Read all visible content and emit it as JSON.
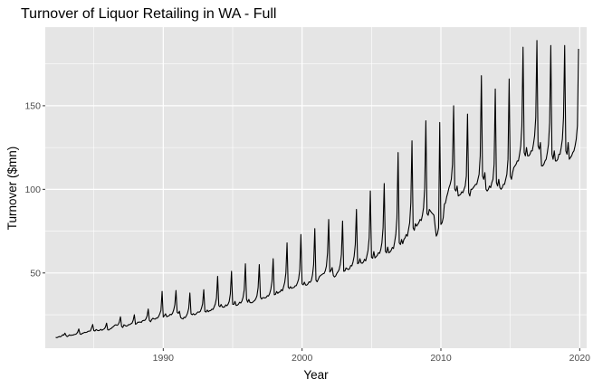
{
  "chart_data": {
    "type": "line",
    "title": "Turnover of Liquor Retailing in WA - Full",
    "xlabel": "Year",
    "ylabel": "Turnover ($mn)",
    "xlim": [
      1981.5,
      2020.5
    ],
    "ylim": [
      5,
      197
    ],
    "x_ticks": [
      1990,
      2000,
      2010,
      2020
    ],
    "x_tick_labels": [
      "1990",
      "2000",
      "2010",
      "2020"
    ],
    "x_minor_ticks": [
      1985,
      1995,
      2005,
      2015
    ],
    "y_ticks": [
      50,
      100,
      150
    ],
    "y_tick_labels": [
      "50",
      "100",
      "150"
    ],
    "y_minor_ticks": [
      25,
      75,
      125,
      175
    ],
    "grid": true,
    "background": "#e5e5e5",
    "grid_color": "#ffffff",
    "line_color": "#000000",
    "frequency": "monthly",
    "start": "1982-04",
    "end": "2018-12",
    "series": [
      {
        "name": "",
        "values": [
          11.5,
          11.3,
          11.6,
          12,
          11.8,
          12.2,
          13,
          12.8,
          14,
          12.6,
          11.9,
          12.4,
          13,
          12.6,
          12.9,
          12.8,
          13.2,
          13.3,
          13.6,
          14.6,
          16.5,
          13.5,
          13.3,
          13.9,
          14.1,
          14.5,
          14.4,
          14.6,
          15.1,
          15.2,
          15.3,
          17.1,
          19.2,
          15.5,
          15.3,
          16.2,
          15.7,
          15.5,
          15.7,
          16.3,
          15.7,
          16.2,
          16.6,
          17.6,
          20,
          16,
          15.9,
          16.5,
          16.8,
          17.5,
          18,
          18.7,
          19,
          18.7,
          19.1,
          20.6,
          23.8,
          18,
          17.4,
          19,
          18.6,
          18.2,
          18.4,
          19.1,
          19.1,
          19.6,
          20,
          21.7,
          25,
          19.3,
          19.7,
          20.6,
          20.5,
          20.7,
          20.4,
          21.4,
          21.6,
          21.6,
          22.5,
          24.2,
          28.4,
          21.6,
          20.8,
          22.1,
          22.9,
          22.5,
          22.4,
          23,
          23,
          24,
          25.6,
          27.6,
          39,
          23.6,
          24.5,
          25.6,
          23.8,
          24.2,
          24.4,
          25.3,
          25,
          25.9,
          27.8,
          31,
          39.5,
          26.5,
          25.8,
          27.1,
          23.4,
          22.8,
          22.5,
          23.5,
          23.3,
          24.4,
          26,
          28.8,
          38,
          25.6,
          25,
          25.7,
          25,
          25.2,
          26,
          26.7,
          26.5,
          27,
          28.8,
          31.5,
          40,
          27,
          26.6,
          27.8,
          26.8,
          27.4,
          27.5,
          28.3,
          28.2,
          29.7,
          31.5,
          35,
          48,
          30.5,
          29.8,
          31.2,
          29.7,
          29.5,
          29.7,
          30.9,
          30.4,
          31.3,
          33,
          37.5,
          51,
          31.3,
          31.2,
          33,
          30.6,
          30.7,
          31.3,
          32.5,
          32,
          33.2,
          35.5,
          40,
          55.5,
          34.2,
          32.5,
          34.2,
          32.3,
          32.2,
          32.3,
          33,
          33.5,
          34.6,
          36.4,
          41.3,
          55,
          35.5,
          34.4,
          35.2,
          35.2,
          35,
          35.4,
          36.4,
          36.2,
          37.7,
          40.3,
          45,
          58.5,
          37,
          37.2,
          38.9,
          37.8,
          38.5,
          38.7,
          40,
          39.3,
          41.7,
          44.4,
          50,
          68,
          41.5,
          40.7,
          41.8,
          40.8,
          41.2,
          41.3,
          42.3,
          42.4,
          44.2,
          46.3,
          52,
          73,
          43.5,
          42.9,
          44.5,
          42.8,
          42.7,
          43.4,
          44.7,
          44.4,
          45.5,
          48.8,
          55,
          76.5,
          45.7,
          44.7,
          46.2,
          47.8,
          48.5,
          49,
          49.5,
          49.7,
          51.2,
          54,
          62,
          82,
          50.5,
          51.5,
          53.2,
          48.5,
          47.6,
          48.2,
          49.7,
          50.7,
          52,
          55,
          61,
          81,
          51,
          51.2,
          53,
          52.5,
          52,
          52.5,
          54.4,
          54.2,
          56.5,
          60,
          67,
          88,
          55.5,
          56,
          58.5,
          56,
          55.8,
          56.5,
          58.2,
          57.2,
          60.2,
          63.5,
          71,
          99,
          59.3,
          58.8,
          62.8,
          59,
          59.7,
          60.5,
          62.1,
          61.7,
          64,
          68,
          77,
          103.5,
          63,
          62,
          65.5,
          62,
          62.5,
          63.5,
          65.3,
          64.6,
          68.5,
          73,
          83,
          122,
          68,
          67,
          70,
          67.5,
          70,
          71,
          73,
          72,
          76,
          80,
          92,
          129,
          77,
          75.5,
          79.5,
          78,
          79,
          80.2,
          82,
          81.3,
          84.5,
          89,
          101,
          141,
          85.5,
          84.5,
          88,
          87,
          86,
          85.3,
          84.5,
          78,
          72,
          73.5,
          77,
          140,
          79,
          80,
          83,
          91,
          92,
          95.5,
          98,
          101,
          103,
          106,
          115,
          150,
          100,
          99,
          102,
          96,
          96.5,
          97,
          98.5,
          98,
          100,
          102,
          108,
          145,
          98,
          96,
          100,
          100,
          101,
          102,
          103,
          103,
          106,
          109,
          120,
          168,
          108,
          106,
          110,
          100,
          99,
          100,
          102,
          101,
          104,
          106,
          115,
          160,
          104,
          102,
          106,
          101,
          100,
          101,
          103,
          103,
          106,
          109,
          118,
          166,
          108,
          106,
          110,
          113,
          114,
          115,
          117,
          117,
          121,
          126,
          138,
          185,
          122,
          120,
          125,
          120,
          120,
          121,
          123,
          123,
          127,
          132,
          143,
          189,
          126,
          124,
          128,
          114,
          114,
          115,
          117,
          118,
          122,
          127,
          140,
          186,
          121,
          118,
          123,
          117,
          117,
          118,
          121,
          121,
          125,
          130,
          143,
          186,
          123,
          121,
          128,
          118,
          119,
          120,
          122,
          123,
          126,
          130,
          138,
          184
        ]
      }
    ]
  }
}
